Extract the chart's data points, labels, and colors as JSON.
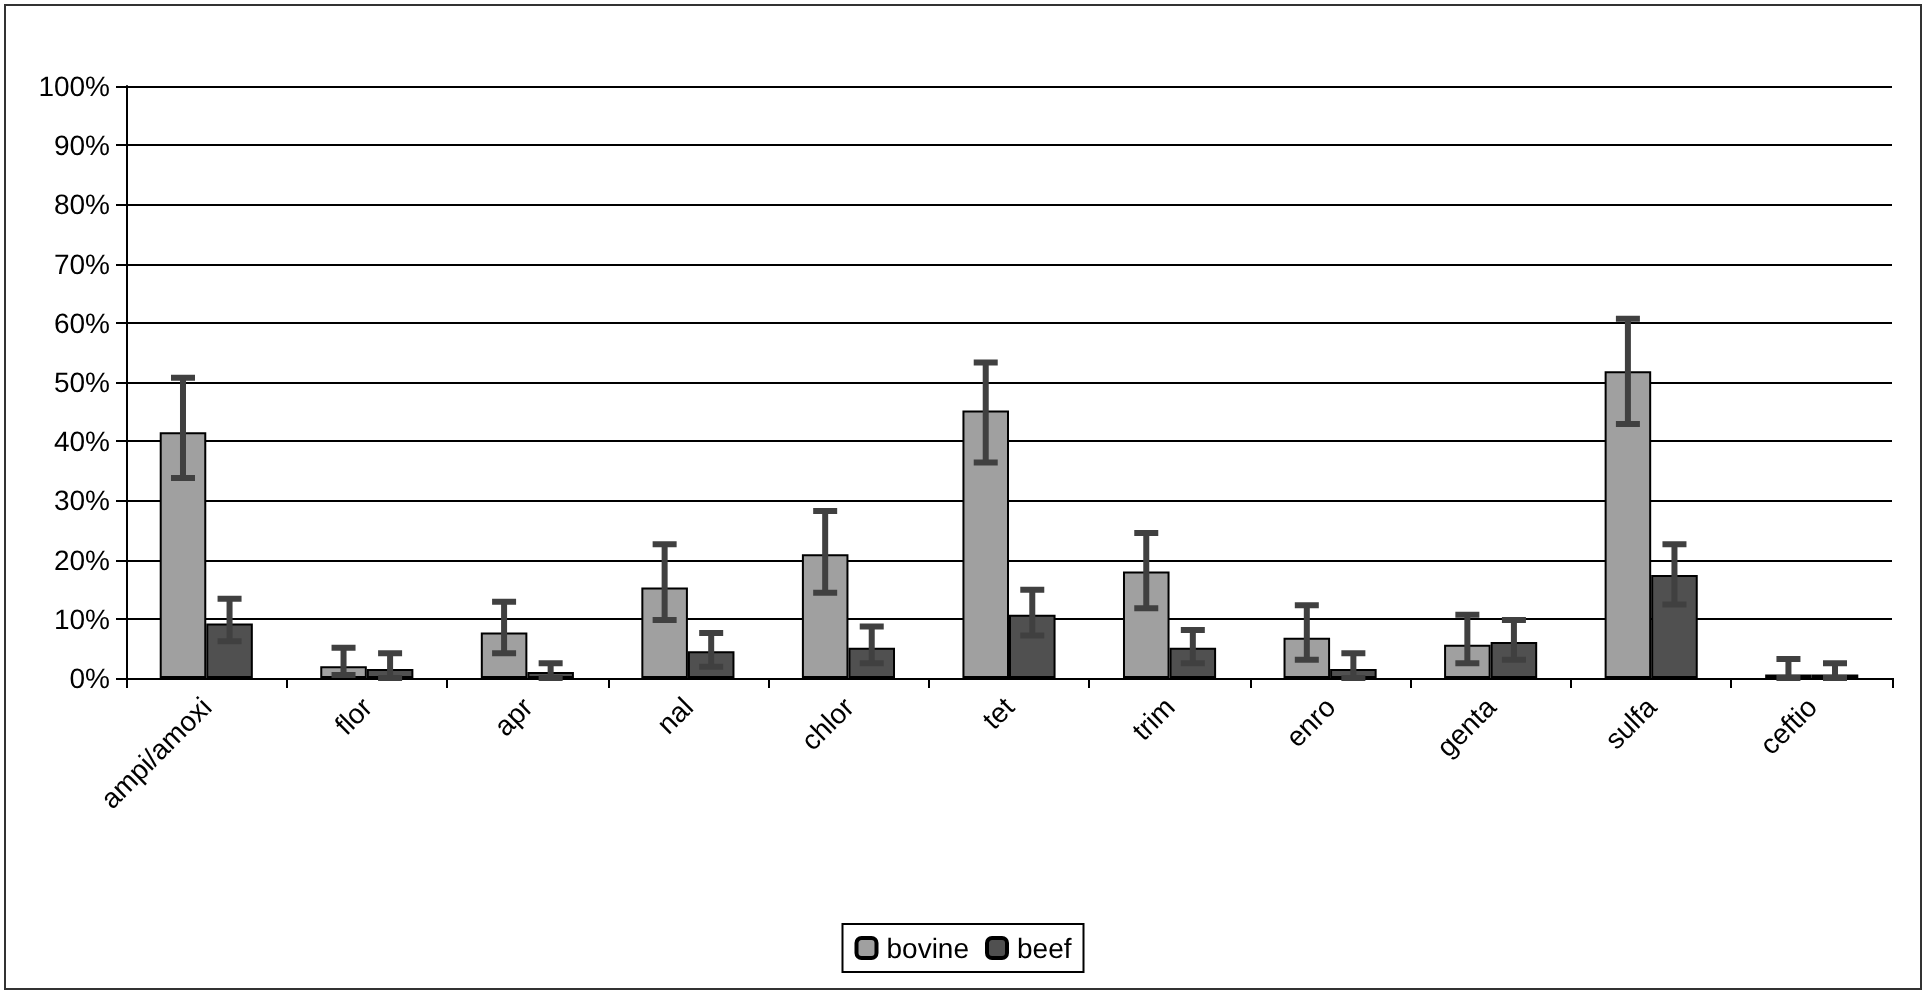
{
  "chart_data": {
    "type": "bar",
    "categories": [
      "ampi/amoxi",
      "flor",
      "apr",
      "nal",
      "chlor",
      "tet",
      "trim",
      "enro",
      "genta",
      "sulfa",
      "ceftio"
    ],
    "series": [
      {
        "name": "bovine",
        "color": "#a0a0a0",
        "values": [
          41.5,
          2.0,
          7.7,
          15.3,
          20.9,
          45.2,
          18.0,
          6.8,
          5.6,
          51.8,
          0.6
        ],
        "errors": [
          [
            33.8,
            50.7
          ],
          [
            0.5,
            5.1
          ],
          [
            4.2,
            12.9
          ],
          [
            9.8,
            22.6
          ],
          [
            14.4,
            28.2
          ],
          [
            36.4,
            53.3
          ],
          [
            11.8,
            24.5
          ],
          [
            3.1,
            12.3
          ],
          [
            2.5,
            10.7
          ],
          [
            42.9,
            60.7
          ],
          [
            0,
            3.2
          ]
        ]
      },
      {
        "name": "beef",
        "color": "#505050",
        "values": [
          9.2,
          1.5,
          1.0,
          4.5,
          5.1,
          10.7,
          5.1,
          1.5,
          6.1,
          17.4,
          0.6
        ],
        "errors": [
          [
            6.2,
            13.4
          ],
          [
            0,
            4.2
          ],
          [
            0,
            2.5
          ],
          [
            1.9,
            7.6
          ],
          [
            2.5,
            8.7
          ],
          [
            7.2,
            14.9
          ],
          [
            2.5,
            8.1
          ],
          [
            0,
            4.2
          ],
          [
            3.1,
            9.8
          ],
          [
            12.4,
            22.6
          ],
          [
            0,
            2.5
          ]
        ]
      }
    ],
    "ylim": [
      0,
      100
    ],
    "yticks": [
      {
        "value": 0,
        "label": "0%"
      },
      {
        "value": 10,
        "label": "10%"
      },
      {
        "value": 20,
        "label": "20%"
      },
      {
        "value": 30,
        "label": "30%"
      },
      {
        "value": 40,
        "label": "40%"
      },
      {
        "value": 50,
        "label": "50%"
      },
      {
        "value": 60,
        "label": "60%"
      },
      {
        "value": 70,
        "label": "70%"
      },
      {
        "value": 80,
        "label": "80%"
      },
      {
        "value": 90,
        "label": "90%"
      },
      {
        "value": 100,
        "label": "100%"
      }
    ],
    "grid": "y",
    "legend": "bottom"
  }
}
